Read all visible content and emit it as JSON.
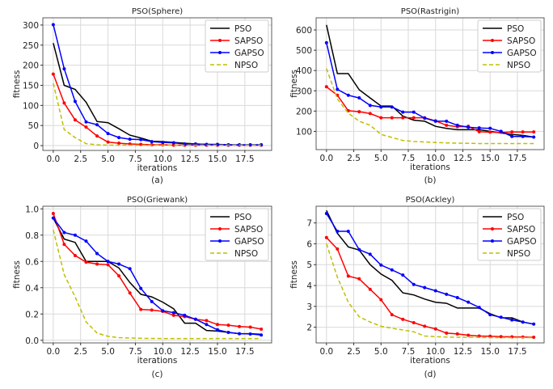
{
  "chart_data": [
    {
      "type": "line",
      "title": "PSO(Sphere)",
      "xlabel": "iterations",
      "ylabel": "fitness",
      "caption": "(a)",
      "xlim": [
        -0.95,
        19.95
      ],
      "ylim": [
        -12,
        318
      ],
      "xticks": [
        0,
        2.5,
        5,
        7.5,
        10,
        12.5,
        15,
        17.5
      ],
      "xtick_labels": [
        "0.0",
        "2.5",
        "5.0",
        "7.5",
        "10.0",
        "12.5",
        "15.0",
        "17.5"
      ],
      "yticks": [
        0,
        50,
        100,
        150,
        200,
        250,
        300
      ],
      "ytick_labels": [
        "0",
        "50",
        "100",
        "150",
        "200",
        "250",
        "300"
      ],
      "grid": true,
      "legend": "top-right",
      "x": [
        0,
        1,
        2,
        3,
        4,
        5,
        6,
        7,
        8,
        9,
        10,
        11,
        12,
        13,
        14,
        15,
        16,
        17,
        18,
        19
      ],
      "series": [
        {
          "name": "PSO",
          "color": "#000000",
          "style": "solid",
          "marker": false,
          "values": [
            255,
            150,
            140,
            108,
            60,
            57,
            42,
            26,
            19,
            11,
            10,
            8,
            6,
            4,
            3,
            2,
            2,
            1,
            1,
            1
          ]
        },
        {
          "name": "SAPSO",
          "color": "#ff0000",
          "style": "solid",
          "marker": true,
          "values": [
            178,
            106,
            64,
            46,
            24,
            9,
            6,
            4,
            3,
            2,
            2,
            1,
            1,
            1,
            1,
            1,
            1,
            1,
            1,
            1
          ]
        },
        {
          "name": "GAPSO",
          "color": "#0000ff",
          "style": "solid",
          "marker": true,
          "values": [
            301,
            191,
            110,
            59,
            52,
            30,
            20,
            16,
            15,
            10,
            8,
            7,
            4,
            4,
            3,
            3,
            2,
            2,
            2,
            2
          ]
        },
        {
          "name": "NPSO",
          "color": "#bfbf00",
          "style": "dashed",
          "marker": false,
          "values": [
            155,
            40,
            20,
            5,
            2,
            1,
            1,
            1,
            1,
            1,
            1,
            1,
            1,
            1,
            1,
            1,
            1,
            1,
            1,
            1
          ]
        }
      ]
    },
    {
      "type": "line",
      "title": "PSO(Rastrigin)",
      "xlabel": "iterations",
      "ylabel": "fitness",
      "caption": "(b)",
      "xlim": [
        -0.95,
        19.95
      ],
      "ylim": [
        10,
        660
      ],
      "xticks": [
        0,
        2.5,
        5,
        7.5,
        10,
        12.5,
        15,
        17.5
      ],
      "xtick_labels": [
        "0.0",
        "2.5",
        "5.0",
        "7.5",
        "10.0",
        "12.5",
        "15.0",
        "17.5"
      ],
      "yticks": [
        100,
        200,
        300,
        400,
        500,
        600
      ],
      "ytick_labels": [
        "100",
        "200",
        "300",
        "400",
        "500",
        "600"
      ],
      "grid": true,
      "legend": "top-right",
      "x": [
        0,
        1,
        2,
        3,
        4,
        5,
        6,
        7,
        8,
        9,
        10,
        11,
        12,
        13,
        14,
        15,
        16,
        17,
        18,
        19
      ],
      "series": [
        {
          "name": "PSO",
          "color": "#000000",
          "style": "solid",
          "marker": false,
          "values": [
            625,
            385,
            385,
            305,
            265,
            225,
            225,
            175,
            155,
            150,
            125,
            115,
            108,
            108,
            108,
            100,
            92,
            85,
            80,
            72
          ]
        },
        {
          "name": "SAPSO",
          "color": "#ff0000",
          "style": "solid",
          "marker": true,
          "values": [
            320,
            278,
            202,
            197,
            188,
            167,
            167,
            167,
            167,
            167,
            152,
            130,
            123,
            125,
            98,
            96,
            95,
            97,
            97,
            97
          ]
        },
        {
          "name": "GAPSO",
          "color": "#0000ff",
          "style": "solid",
          "marker": true,
          "values": [
            537,
            307,
            278,
            265,
            228,
            220,
            220,
            195,
            195,
            165,
            150,
            150,
            130,
            120,
            117,
            115,
            100,
            75,
            75,
            72
          ]
        },
        {
          "name": "NPSO",
          "color": "#bfbf00",
          "style": "dashed",
          "marker": false,
          "values": [
            410,
            260,
            190,
            150,
            130,
            85,
            70,
            55,
            50,
            48,
            45,
            43,
            42,
            41,
            40,
            40,
            40,
            40,
            40,
            40
          ]
        }
      ]
    },
    {
      "type": "line",
      "title": "PSO(Griewank)",
      "xlabel": "iterations",
      "ylabel": "fitness",
      "caption": "(c)",
      "xlim": [
        -0.95,
        19.95
      ],
      "ylim": [
        -0.02,
        1.02
      ],
      "xticks": [
        0,
        2.5,
        5,
        7.5,
        10,
        12.5,
        15,
        17.5
      ],
      "xtick_labels": [
        "0.0",
        "2.5",
        "5.0",
        "7.5",
        "10.0",
        "12.5",
        "15.0",
        "17.5"
      ],
      "yticks": [
        0,
        0.2,
        0.4,
        0.6,
        0.8,
        1.0
      ],
      "ytick_labels": [
        "0.0",
        "0.2",
        "0.4",
        "0.6",
        "0.8",
        "1.0"
      ],
      "grid": true,
      "legend": "top-right",
      "x": [
        0,
        1,
        2,
        3,
        4,
        5,
        6,
        7,
        8,
        9,
        10,
        11,
        12,
        13,
        14,
        15,
        16,
        17,
        18,
        19
      ],
      "series": [
        {
          "name": "PSO",
          "color": "#000000",
          "style": "solid",
          "marker": false,
          "values": [
            0.93,
            0.77,
            0.745,
            0.6,
            0.6,
            0.6,
            0.55,
            0.44,
            0.35,
            0.33,
            0.29,
            0.24,
            0.13,
            0.13,
            0.075,
            0.07,
            0.06,
            0.05,
            0.05,
            0.045
          ]
        },
        {
          "name": "SAPSO",
          "color": "#ff0000",
          "style": "solid",
          "marker": true,
          "values": [
            0.965,
            0.73,
            0.645,
            0.595,
            0.58,
            0.575,
            0.49,
            0.36,
            0.235,
            0.23,
            0.22,
            0.19,
            0.18,
            0.16,
            0.15,
            0.12,
            0.115,
            0.105,
            0.1,
            0.085
          ]
        },
        {
          "name": "GAPSO",
          "color": "#0000ff",
          "style": "solid",
          "marker": true,
          "values": [
            0.93,
            0.82,
            0.8,
            0.755,
            0.66,
            0.6,
            0.58,
            0.545,
            0.395,
            0.295,
            0.225,
            0.21,
            0.19,
            0.16,
            0.12,
            0.08,
            0.06,
            0.05,
            0.048,
            0.04
          ]
        },
        {
          "name": "NPSO",
          "color": "#bfbf00",
          "style": "dashed",
          "marker": false,
          "values": [
            0.84,
            0.5,
            0.33,
            0.14,
            0.055,
            0.03,
            0.02,
            0.017,
            0.015,
            0.014,
            0.013,
            0.013,
            0.013,
            0.013,
            0.013,
            0.013,
            0.013,
            0.013,
            0.013,
            0.013
          ]
        }
      ]
    },
    {
      "type": "line",
      "title": "PSO(Ackley)",
      "xlabel": "iterations",
      "ylabel": "fitness",
      "caption": "(d)",
      "xlim": [
        -0.95,
        19.95
      ],
      "ylim": [
        1.25,
        7.8
      ],
      "xticks": [
        0,
        2.5,
        5,
        7.5,
        10,
        12.5,
        15,
        17.5
      ],
      "xtick_labels": [
        "0.0",
        "2.5",
        "5.0",
        "7.5",
        "10.0",
        "12.5",
        "15.0",
        "17.5"
      ],
      "yticks": [
        2,
        3,
        4,
        5,
        6,
        7
      ],
      "ytick_labels": [
        "2",
        "3",
        "4",
        "5",
        "6",
        "7"
      ],
      "grid": true,
      "legend": "top-right",
      "x": [
        0,
        1,
        2,
        3,
        4,
        5,
        6,
        7,
        8,
        9,
        10,
        11,
        12,
        13,
        14,
        15,
        16,
        17,
        18,
        19
      ],
      "series": [
        {
          "name": "PSO",
          "color": "#000000",
          "style": "solid",
          "marker": false,
          "values": [
            7.6,
            6.5,
            5.85,
            5.7,
            5.0,
            4.55,
            4.25,
            3.65,
            3.55,
            3.35,
            3.2,
            3.15,
            2.92,
            2.92,
            2.92,
            2.65,
            2.45,
            2.45,
            2.25,
            2.15
          ]
        },
        {
          "name": "SAPSO",
          "color": "#ff0000",
          "style": "solid",
          "marker": true,
          "values": [
            6.3,
            5.75,
            4.45,
            4.32,
            3.82,
            3.32,
            2.6,
            2.38,
            2.22,
            2.05,
            1.92,
            1.72,
            1.68,
            1.62,
            1.58,
            1.57,
            1.55,
            1.54,
            1.53,
            1.52
          ]
        },
        {
          "name": "GAPSO",
          "color": "#0000ff",
          "style": "solid",
          "marker": true,
          "values": [
            7.45,
            6.6,
            6.6,
            5.72,
            5.5,
            4.98,
            4.75,
            4.5,
            4.05,
            3.9,
            3.75,
            3.58,
            3.42,
            3.2,
            2.95,
            2.6,
            2.48,
            2.35,
            2.25,
            2.15
          ]
        },
        {
          "name": "NPSO",
          "color": "#bfbf00",
          "style": "dashed",
          "marker": false,
          "values": [
            6.0,
            4.4,
            3.2,
            2.5,
            2.25,
            2.05,
            1.95,
            1.87,
            1.78,
            1.58,
            1.55,
            1.53,
            1.52,
            1.52,
            1.51,
            1.5,
            1.5,
            1.5,
            1.5,
            1.5
          ]
        }
      ]
    }
  ]
}
